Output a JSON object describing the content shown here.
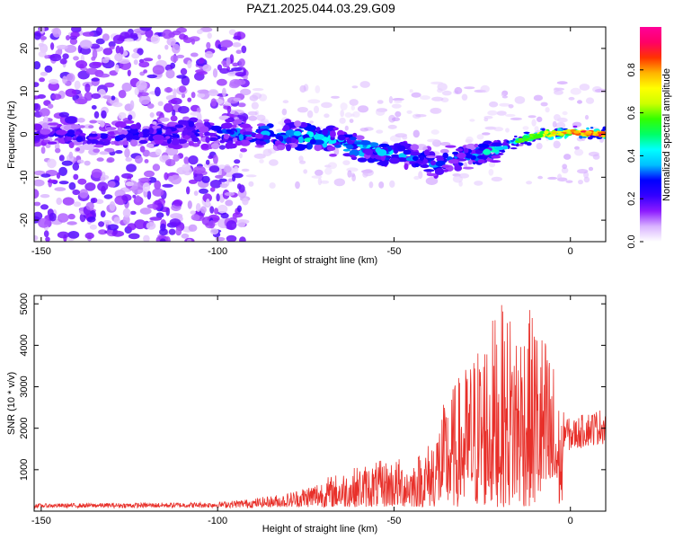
{
  "title": "PAZ1.2025.044.03.29.G09",
  "chart_data": [
    {
      "type": "heatmap",
      "xlabel": "Height of straight line (km)",
      "ylabel": "Frequency (Hz)",
      "xlim": [
        -152,
        10
      ],
      "ylim": [
        -25,
        25
      ],
      "xticks": [
        -150,
        -100,
        -50,
        0
      ],
      "yticks": [
        -20,
        -10,
        0,
        10,
        20
      ],
      "colorbar": {
        "label": "Normalized spectral amplitude",
        "range": [
          0,
          1
        ],
        "ticks": [
          0.0,
          0.2,
          0.4,
          0.6,
          0.8
        ],
        "ticklabels": [
          "0.0",
          "0.2",
          "0.4",
          "0.6",
          "0.8"
        ],
        "colormap": [
          "#ffffff",
          "#d9b3ff",
          "#8c1aff",
          "#3300ff",
          "#0000ff",
          "#00bfff",
          "#00ffff",
          "#00ff66",
          "#33ff00",
          "#ccff00",
          "#ffff00",
          "#ffb300",
          "#ff3300",
          "#ff0066",
          "#ff0099"
        ]
      },
      "ridge": [
        [
          -150,
          0
        ],
        [
          -130,
          -0.5
        ],
        [
          -110,
          0.5
        ],
        [
          -95,
          0
        ],
        [
          -85,
          0
        ],
        [
          -75,
          -0.5
        ],
        [
          -65,
          -2
        ],
        [
          -55,
          -4
        ],
        [
          -45,
          -5
        ],
        [
          -38,
          -7
        ],
        [
          -30,
          -5
        ],
        [
          -22,
          -4
        ],
        [
          -15,
          -1.5
        ],
        [
          -8,
          0
        ],
        [
          0,
          0.5
        ],
        [
          10,
          0
        ]
      ],
      "ridge_amplitude": [
        [
          -150,
          0.25
        ],
        [
          -120,
          0.3
        ],
        [
          -100,
          0.35
        ],
        [
          -85,
          0.45
        ],
        [
          -75,
          0.55
        ],
        [
          -65,
          0.5
        ],
        [
          -55,
          0.45
        ],
        [
          -45,
          0.4
        ],
        [
          -35,
          0.35
        ],
        [
          -25,
          0.45
        ],
        [
          -15,
          0.6
        ],
        [
          -8,
          0.75
        ],
        [
          -2,
          0.85
        ],
        [
          5,
          0.95
        ],
        [
          10,
          0.95
        ]
      ]
    },
    {
      "type": "line",
      "xlabel": "Height of straight line (km)",
      "ylabel": "SNR (10 * v/v)",
      "xlim": [
        -152,
        10
      ],
      "ylim": [
        0,
        5200
      ],
      "xticks": [
        -150,
        -100,
        -50,
        0
      ],
      "yticks": [
        1000,
        2000,
        3000,
        4000,
        5000
      ],
      "color": "#e8302a",
      "envelope": [
        [
          -152,
          180
        ],
        [
          -140,
          190
        ],
        [
          -120,
          200
        ],
        [
          -100,
          220
        ],
        [
          -90,
          300
        ],
        [
          -80,
          450
        ],
        [
          -70,
          800
        ],
        [
          -60,
          1100
        ],
        [
          -50,
          1300
        ],
        [
          -45,
          1250
        ],
        [
          -40,
          1700
        ],
        [
          -35,
          2800
        ],
        [
          -30,
          3500
        ],
        [
          -25,
          4300
        ],
        [
          -20,
          5000
        ],
        [
          -15,
          4800
        ],
        [
          -10,
          4900
        ],
        [
          -5,
          3800
        ],
        [
          -3,
          2500
        ],
        [
          0,
          2200
        ],
        [
          5,
          2400
        ],
        [
          10,
          2500
        ]
      ]
    }
  ]
}
